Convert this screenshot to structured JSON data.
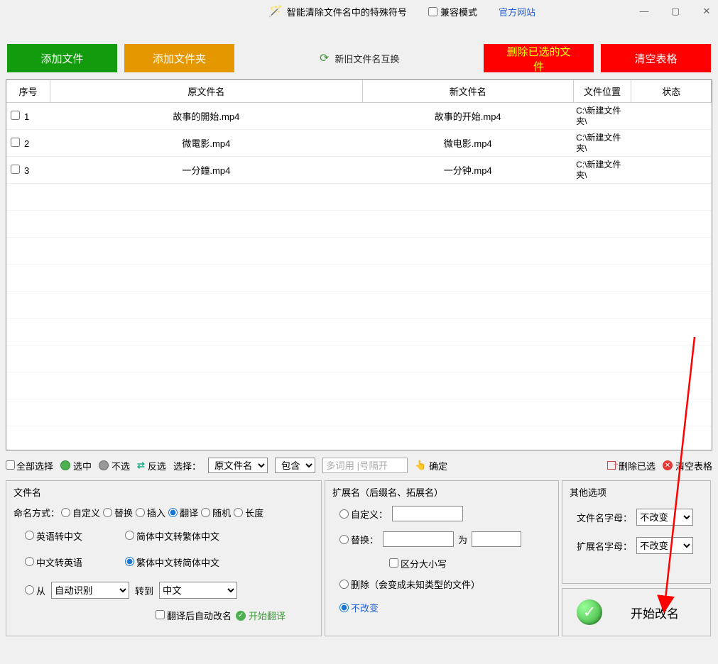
{
  "titlebar": {
    "title": "智能清除文件名中的特殊符号",
    "compat": "兼容模式",
    "official": "官方网站"
  },
  "toolbar": {
    "add_file": "添加文件",
    "add_folder": "添加文件夹",
    "swap": "新旧文件名互换",
    "delete_selected": "删除已选的文件",
    "clear_table": "清空表格"
  },
  "table": {
    "headers": {
      "seq": "序号",
      "orig": "原文件名",
      "new": "新文件名",
      "loc": "文件位置",
      "status": "状态"
    },
    "rows": [
      {
        "seq": "1",
        "orig": "故事的開始.mp4",
        "new": "故事的开始.mp4",
        "loc": "C:\\新建文件夹\\"
      },
      {
        "seq": "2",
        "orig": "微電影.mp4",
        "new": "微电影.mp4",
        "loc": "C:\\新建文件夹\\"
      },
      {
        "seq": "3",
        "orig": "一分鐘.mp4",
        "new": "一分钟.mp4",
        "loc": "C:\\新建文件夹\\"
      }
    ]
  },
  "filter": {
    "select_all": "全部选择",
    "check": "选中",
    "uncheck": "不选",
    "invert": "反选",
    "select_label": "选择：",
    "sel1": "原文件名",
    "sel2": "包含",
    "placeholder": "多词用 |号隔开",
    "confirm": "确定",
    "delete_sel": "删除已选",
    "clear": "清空表格"
  },
  "filename_panel": {
    "title": "文件名",
    "mode_label": "命名方式：",
    "modes": [
      "自定义",
      "替换",
      "插入",
      "翻译",
      "随机",
      "长度"
    ],
    "tr_opts": [
      "英语转中文",
      "简体中文转繁体中文",
      "中文转英语",
      "繁体中文转简体中文"
    ],
    "from_label": "从",
    "from_sel": "自动识别",
    "to_label": "转到",
    "to_sel": "中文",
    "auto_rename": "翻译后自动改名",
    "start_translate": "开始翻译"
  },
  "ext_panel": {
    "title": "扩展名（后缀名、拓展名）",
    "custom": "自定义：",
    "replace": "替换：",
    "to": "为",
    "case": "区分大小写",
    "delete": "删除（会变成未知类型的文件）",
    "nochange": "不改变"
  },
  "other_panel": {
    "title": "其他选项",
    "filename_letter": "文件名字母：",
    "ext_letter": "扩展名字母：",
    "nochange": "不改变"
  },
  "start": {
    "label": "开始改名"
  },
  "arrow": {
    "color": "#ff0000"
  }
}
